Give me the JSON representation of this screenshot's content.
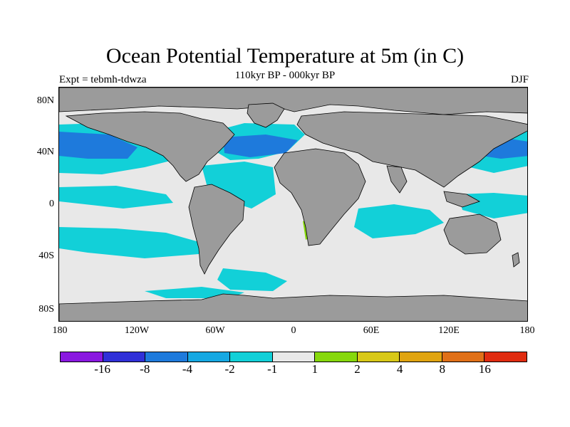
{
  "title": "Ocean Potential Temperature at 5m (in C)",
  "subtitle": "110kyr BP - 000kyr BP",
  "left_label": "Expt = tebmh-tdwza",
  "right_label": "DJF",
  "lat_labels": [
    "80N",
    "40N",
    "0",
    "40S",
    "80S"
  ],
  "lon_labels": [
    "180",
    "120W",
    "60W",
    "0",
    "60E",
    "120E",
    "180"
  ],
  "colorbar": {
    "colors": [
      "#8a18e0",
      "#3030d8",
      "#1e7adc",
      "#16a8e2",
      "#12d0d8",
      "#e8e8e8",
      "#86d80c",
      "#d8c818",
      "#e0a410",
      "#e07018",
      "#e02c10"
    ],
    "labels": [
      "-16",
      "-8",
      "-4",
      "-2",
      "-1",
      "1",
      "2",
      "4",
      "8",
      "16"
    ]
  },
  "map_colors": {
    "land": "#9b9b9b",
    "ocean_neutral": "#e8e8e8",
    "cool_light": "#12d0d8",
    "cool_mid": "#16a8e2",
    "cool_strong": "#1e7adc",
    "warm_light": "#86d80c"
  }
}
